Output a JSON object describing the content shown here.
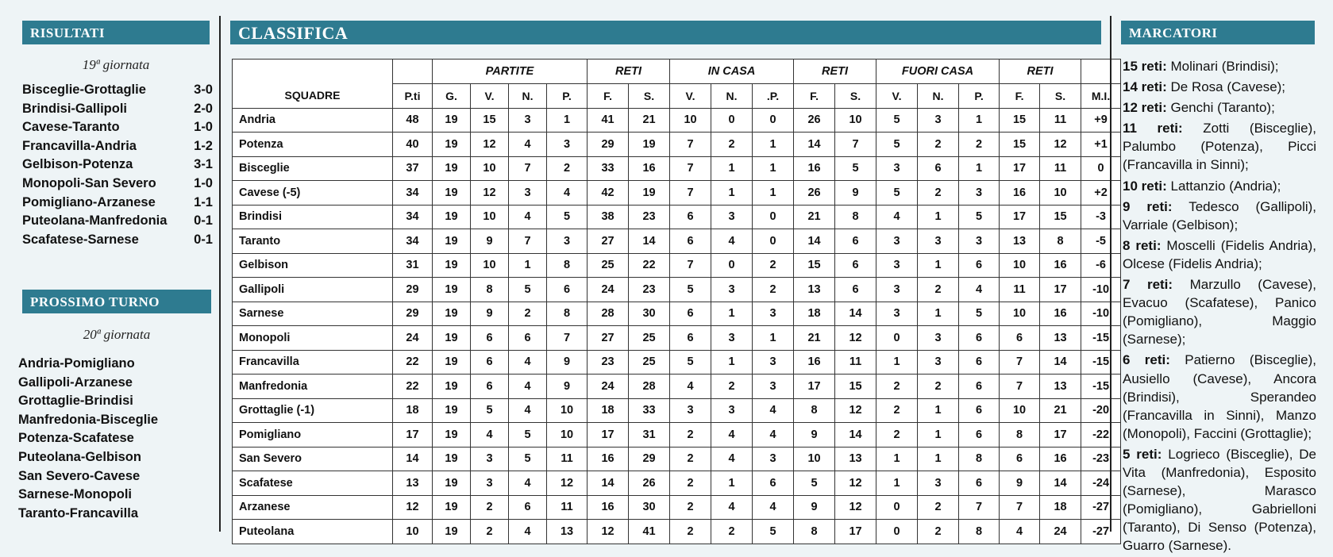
{
  "risultati": {
    "title": "Risultati",
    "giornata": "19ª giornata",
    "matches": [
      {
        "match": "Bisceglie-Grottaglie",
        "score": "3-0"
      },
      {
        "match": "Brindisi-Gallipoli",
        "score": "2-0"
      },
      {
        "match": "Cavese-Taranto",
        "score": "1-0"
      },
      {
        "match": "Francavilla-Andria",
        "score": "1-2"
      },
      {
        "match": "Gelbison-Potenza",
        "score": "3-1"
      },
      {
        "match": "Monopoli-San Severo",
        "score": "1-0"
      },
      {
        "match": "Pomigliano-Arzanese",
        "score": "1-1"
      },
      {
        "match": "Puteolana-Manfredonia",
        "score": "0-1"
      },
      {
        "match": "Scafatese-Sarnese",
        "score": "0-1"
      }
    ]
  },
  "prossimo_turno": {
    "title": "Prossimo Turno",
    "giornata": "20ª giornata",
    "fixtures": [
      "Andria-Pomigliano",
      "Gallipoli-Arzanese",
      "Grottaglie-Brindisi",
      "Manfredonia-Bisceglie",
      "Potenza-Scafatese",
      "Puteolana-Gelbison",
      "San Severo-Cavese",
      "Sarnese-Monopoli",
      "Taranto-Francavilla"
    ]
  },
  "classifica": {
    "title": "Classifica",
    "groups": [
      "PARTITE",
      "RETI",
      "IN CASA",
      "RETI",
      "FUORI CASA",
      "RETI"
    ],
    "columns": [
      "SQUADRE",
      "P.ti",
      "G.",
      "V.",
      "N.",
      "P.",
      "F.",
      "S.",
      "V.",
      "N.",
      ".P.",
      "F.",
      "S.",
      "V.",
      "N.",
      "P.",
      "F.",
      "S.",
      "M.I."
    ],
    "rows": [
      [
        "Andria",
        "48",
        "19",
        "15",
        "3",
        "1",
        "41",
        "21",
        "10",
        "0",
        "0",
        "26",
        "10",
        "5",
        "3",
        "1",
        "15",
        "11",
        "+9"
      ],
      [
        "Potenza",
        "40",
        "19",
        "12",
        "4",
        "3",
        "29",
        "19",
        "7",
        "2",
        "1",
        "14",
        "7",
        "5",
        "2",
        "2",
        "15",
        "12",
        "+1"
      ],
      [
        "Bisceglie",
        "37",
        "19",
        "10",
        "7",
        "2",
        "33",
        "16",
        "7",
        "1",
        "1",
        "16",
        "5",
        "3",
        "6",
        "1",
        "17",
        "11",
        "0"
      ],
      [
        "Cavese (-5)",
        "34",
        "19",
        "12",
        "3",
        "4",
        "42",
        "19",
        "7",
        "1",
        "1",
        "26",
        "9",
        "5",
        "2",
        "3",
        "16",
        "10",
        "+2"
      ],
      [
        "Brindisi",
        "34",
        "19",
        "10",
        "4",
        "5",
        "38",
        "23",
        "6",
        "3",
        "0",
        "21",
        "8",
        "4",
        "1",
        "5",
        "17",
        "15",
        "-3"
      ],
      [
        "Taranto",
        "34",
        "19",
        "9",
        "7",
        "3",
        "27",
        "14",
        "6",
        "4",
        "0",
        "14",
        "6",
        "3",
        "3",
        "3",
        "13",
        "8",
        "-5"
      ],
      [
        "Gelbison",
        "31",
        "19",
        "10",
        "1",
        "8",
        "25",
        "22",
        "7",
        "0",
        "2",
        "15",
        "6",
        "3",
        "1",
        "6",
        "10",
        "16",
        "-6"
      ],
      [
        "Gallipoli",
        "29",
        "19",
        "8",
        "5",
        "6",
        "24",
        "23",
        "5",
        "3",
        "2",
        "13",
        "6",
        "3",
        "2",
        "4",
        "11",
        "17",
        "-10"
      ],
      [
        "Sarnese",
        "29",
        "19",
        "9",
        "2",
        "8",
        "28",
        "30",
        "6",
        "1",
        "3",
        "18",
        "14",
        "3",
        "1",
        "5",
        "10",
        "16",
        "-10"
      ],
      [
        "Monopoli",
        "24",
        "19",
        "6",
        "6",
        "7",
        "27",
        "25",
        "6",
        "3",
        "1",
        "21",
        "12",
        "0",
        "3",
        "6",
        "6",
        "13",
        "-15"
      ],
      [
        "Francavilla",
        "22",
        "19",
        "6",
        "4",
        "9",
        "23",
        "25",
        "5",
        "1",
        "3",
        "16",
        "11",
        "1",
        "3",
        "6",
        "7",
        "14",
        "-15"
      ],
      [
        "Manfredonia",
        "22",
        "19",
        "6",
        "4",
        "9",
        "24",
        "28",
        "4",
        "2",
        "3",
        "17",
        "15",
        "2",
        "2",
        "6",
        "7",
        "13",
        "-15"
      ],
      [
        "Grottaglie (-1)",
        "18",
        "19",
        "5",
        "4",
        "10",
        "18",
        "33",
        "3",
        "3",
        "4",
        "8",
        "12",
        "2",
        "1",
        "6",
        "10",
        "21",
        "-20"
      ],
      [
        "Pomigliano",
        "17",
        "19",
        "4",
        "5",
        "10",
        "17",
        "31",
        "2",
        "4",
        "4",
        "9",
        "14",
        "2",
        "1",
        "6",
        "8",
        "17",
        "-22"
      ],
      [
        "San Severo",
        "14",
        "19",
        "3",
        "5",
        "11",
        "16",
        "29",
        "2",
        "4",
        "3",
        "10",
        "13",
        "1",
        "1",
        "8",
        "6",
        "16",
        "-23"
      ],
      [
        "Scafatese",
        "13",
        "19",
        "3",
        "4",
        "12",
        "14",
        "26",
        "2",
        "1",
        "6",
        "5",
        "12",
        "1",
        "3",
        "6",
        "9",
        "14",
        "-24"
      ],
      [
        "Arzanese",
        "12",
        "19",
        "2",
        "6",
        "11",
        "16",
        "30",
        "2",
        "4",
        "4",
        "9",
        "12",
        "0",
        "2",
        "7",
        "7",
        "18",
        "-27"
      ],
      [
        "Puteolana",
        "10",
        "19",
        "2",
        "4",
        "13",
        "12",
        "41",
        "2",
        "2",
        "5",
        "8",
        "17",
        "0",
        "2",
        "8",
        "4",
        "24",
        "-27"
      ]
    ]
  },
  "marcatori": {
    "title": "Marcatori",
    "groups": [
      {
        "goals": "15 reti:",
        "names": "Molinari (Brindisi);"
      },
      {
        "goals": "14 reti:",
        "names": "De Rosa (Cavese);"
      },
      {
        "goals": "12 reti:",
        "names": "Genchi (Taranto);"
      },
      {
        "goals": "11 reti:",
        "names": "Zotti (Bisceglie), Palumbo (Potenza), Picci (Francavilla in Sinni);"
      },
      {
        "goals": "10 reti:",
        "names": "Lattanzio (Andria);"
      },
      {
        "goals": "9 reti:",
        "names": "Tedesco (Gallipoli), Varriale (Gelbison);"
      },
      {
        "goals": "8 reti:",
        "names": "Moscelli (Fidelis Andria), Olcese (Fidelis Andria);"
      },
      {
        "goals": "7 reti:",
        "names": "Marzullo (Cavese), Evacuo (Scafatese), Panico (Pomigliano), Maggio (Sarnese);"
      },
      {
        "goals": "6 reti:",
        "names": "Patierno (Bisceglie), Ausiello (Cavese), Ancora (Brindisi), Sperandeo (Francavilla in Sinni), Manzo (Monopoli), Faccini (Grottaglie);"
      },
      {
        "goals": "5 reti:",
        "names": "Logrieco (Bisceglie), De Vita (Manfredonia), Esposito (Sarnese), Marasco (Pomigliano), Gabrielloni (Taranto), Di Senso (Potenza), Guarro (Sarnese)."
      }
    ]
  },
  "colors": {
    "header_bg": "#2e7b90",
    "page_bg": "#eef4f6"
  }
}
